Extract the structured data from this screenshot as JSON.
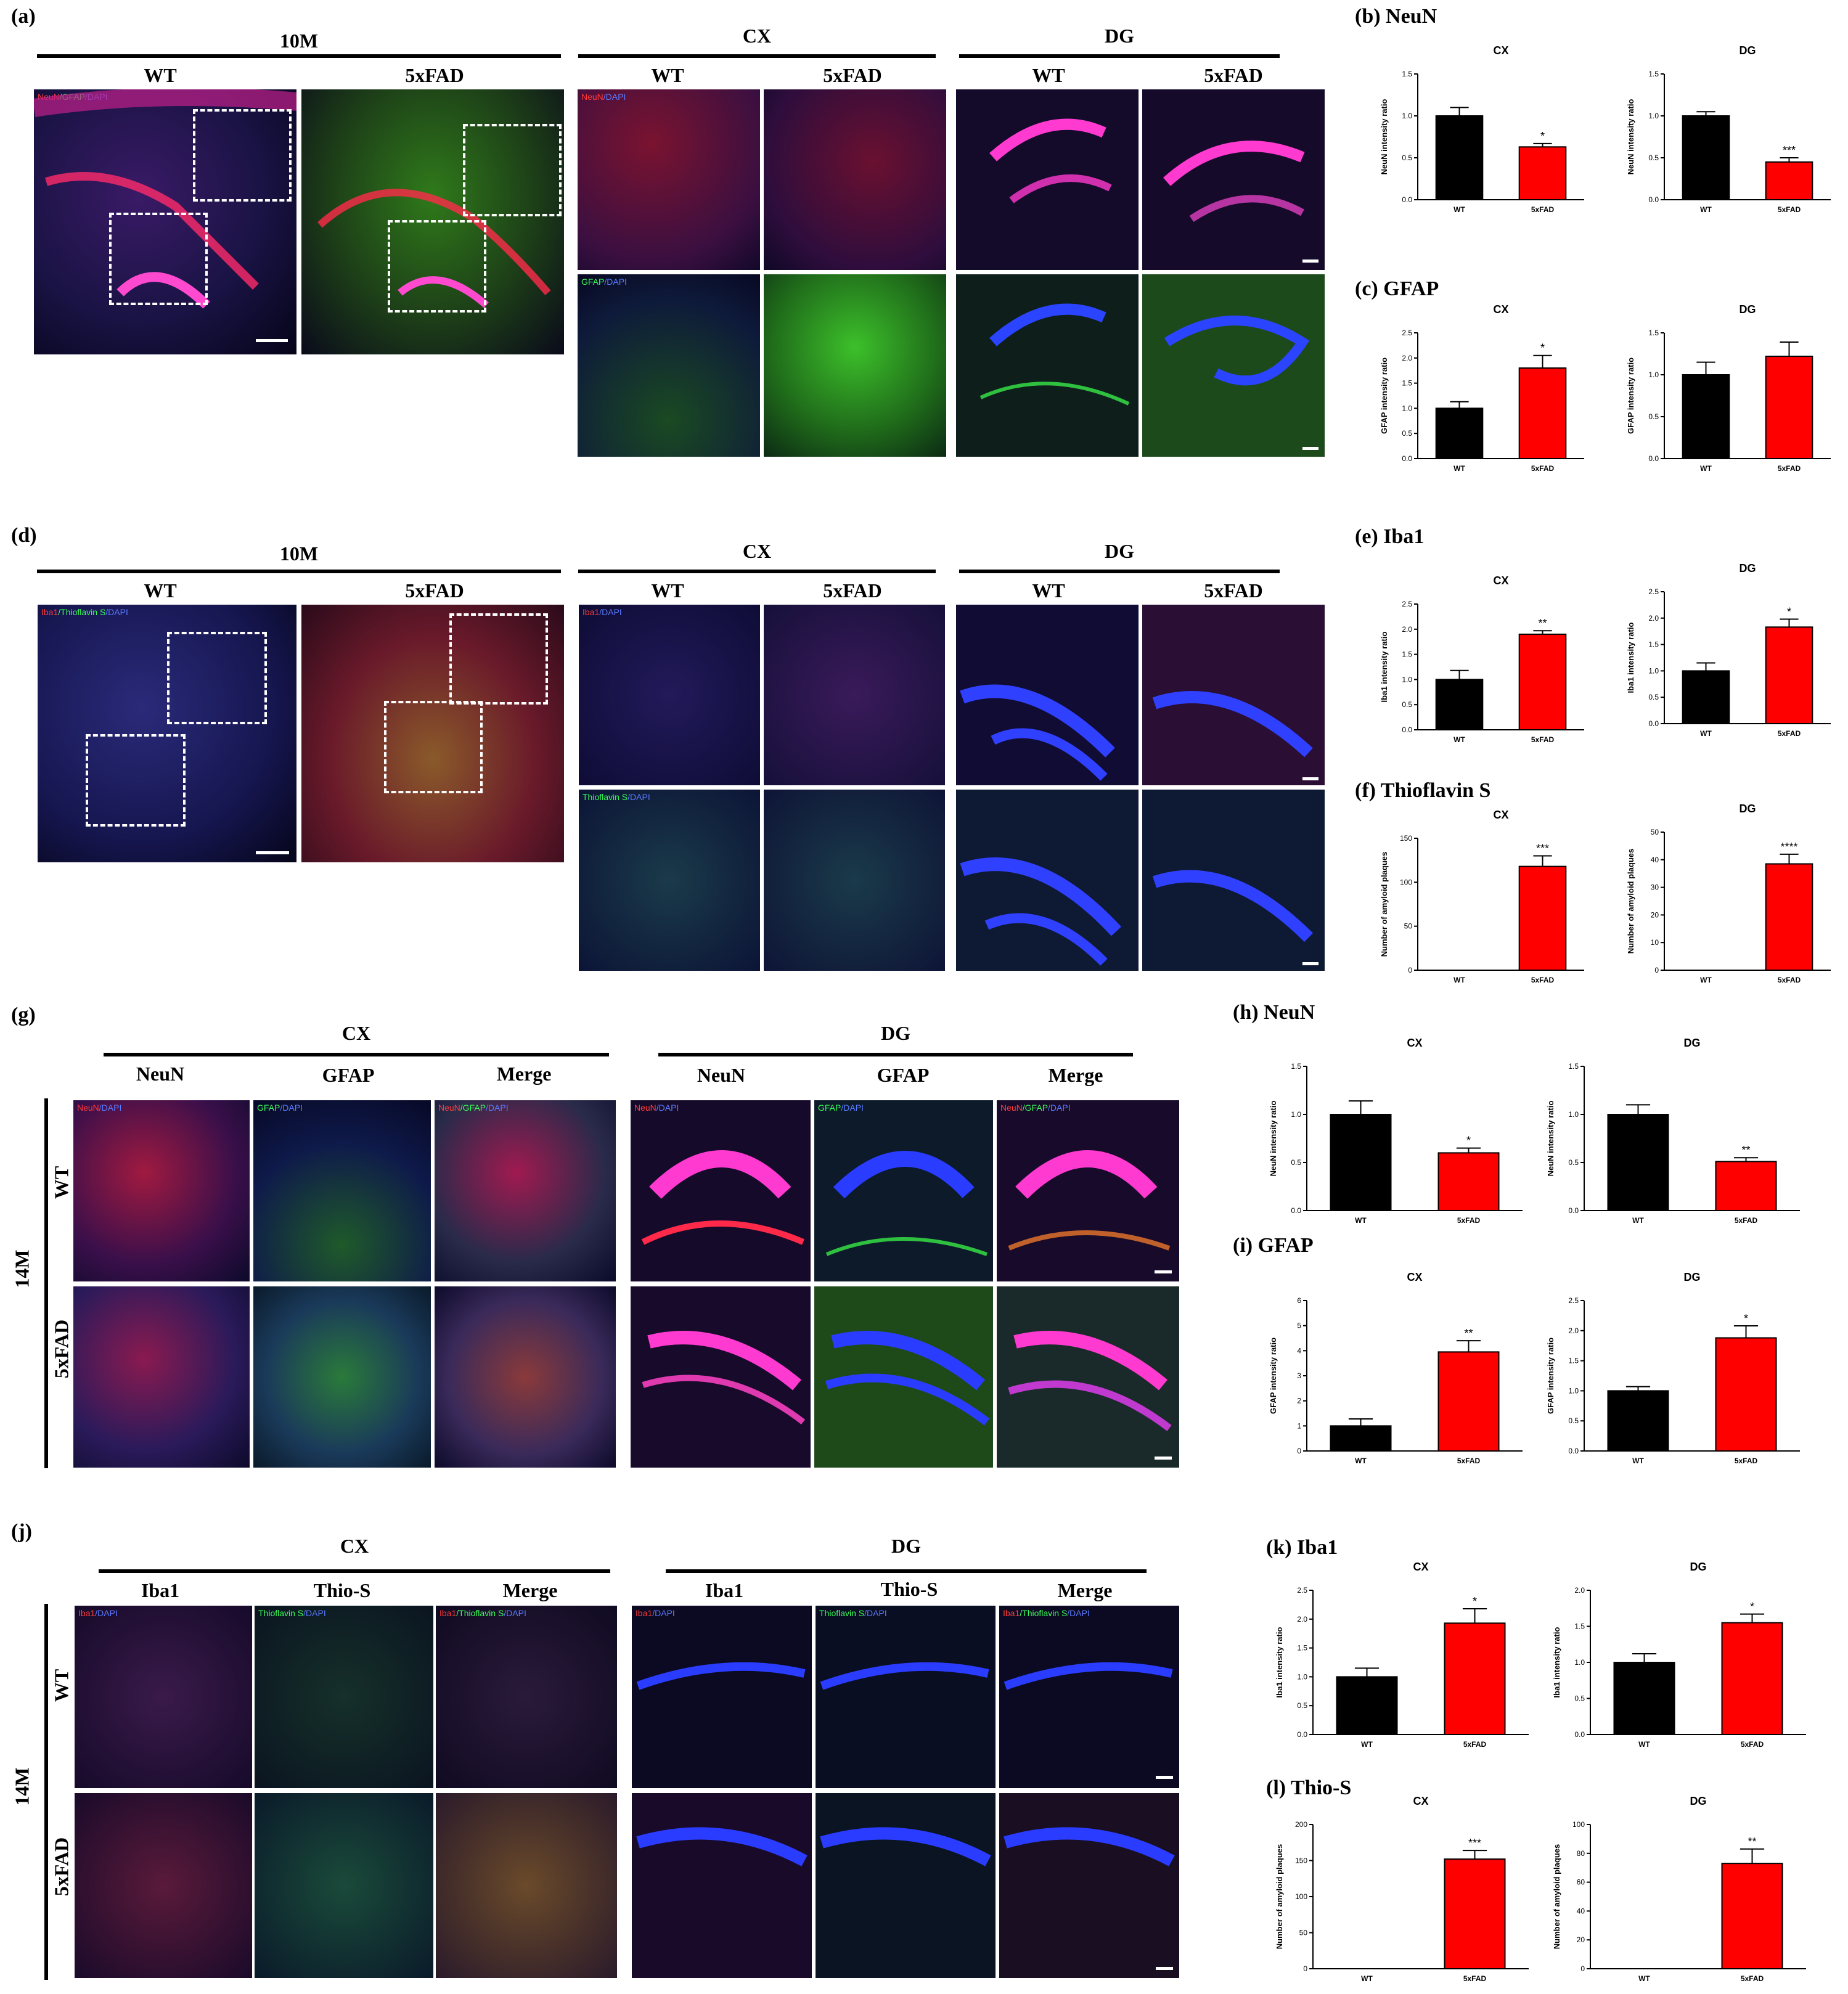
{
  "labels": {
    "a": "(a)",
    "b": "(b) NeuN",
    "c": "(c) GFAP",
    "d": "(d)",
    "e": "(e) Iba1",
    "f": "(f) Thioflavin S",
    "g": "(g)",
    "h": "(h) NeuN",
    "i": "(i) GFAP",
    "j": "(j)",
    "k": "(k) Iba1",
    "l": "(l) Thio-S"
  },
  "headers": {
    "age10": "10M",
    "age14": "14M",
    "wt": "WT",
    "fad": "5xFAD",
    "cx": "CX",
    "dg": "DG",
    "neun": "NeuN",
    "gfap": "GFAP",
    "merge": "Merge",
    "iba1": "Iba1",
    "thios": "Thio-S"
  },
  "captions": {
    "neun_gfap_dapi": [
      "NeuN",
      "/GFAP",
      "/DAPI"
    ],
    "neun_dapi": [
      "NeuN",
      "/DAPI"
    ],
    "gfap_dapi": [
      "GFAP",
      "/DAPI"
    ],
    "iba1_thio_dapi": [
      "Iba1",
      "/Thioflavin S",
      "/DAPI"
    ],
    "iba1_dapi": [
      "Iba1",
      "/DAPI"
    ],
    "thio_dapi": [
      "Thioflavin S",
      "/DAPI"
    ],
    "merge_ng": [
      "NeuN",
      "/GFAP",
      "/DAPI"
    ],
    "merge_it": [
      "Iba1",
      "/Thioflavin S",
      "/DAPI"
    ]
  },
  "colors": {
    "wt_bar": "#000000",
    "fad_bar": "#ff0000"
  },
  "chart_data": [
    {
      "id": "b-cx",
      "type": "bar",
      "title": "CX",
      "ylabel": "NeuN intensity ratio",
      "categories": [
        "WT",
        "5xFAD"
      ],
      "values": [
        1.0,
        0.63
      ],
      "errors": [
        0.1,
        0.04
      ],
      "significance": [
        "",
        "*"
      ],
      "ylim": [
        0,
        1.5
      ],
      "ticks": [
        "0.0",
        "0.5",
        "1.0",
        "1.5"
      ]
    },
    {
      "id": "b-dg",
      "type": "bar",
      "title": "DG",
      "ylabel": "NeuN intensity ratio",
      "categories": [
        "WT",
        "5xFAD"
      ],
      "values": [
        1.0,
        0.45
      ],
      "errors": [
        0.05,
        0.05
      ],
      "significance": [
        "",
        "***"
      ],
      "ylim": [
        0,
        1.5
      ],
      "ticks": [
        "0.0",
        "0.5",
        "1.0",
        "1.5"
      ]
    },
    {
      "id": "c-cx",
      "type": "bar",
      "title": "CX",
      "ylabel": "GFAP intensity ratio",
      "categories": [
        "WT",
        "5xFAD"
      ],
      "values": [
        1.0,
        1.8
      ],
      "errors": [
        0.13,
        0.25
      ],
      "significance": [
        "",
        "*"
      ],
      "ylim": [
        0,
        2.5
      ],
      "ticks": [
        "0.0",
        "0.5",
        "1.0",
        "1.5",
        "2.0",
        "2.5"
      ]
    },
    {
      "id": "c-dg",
      "type": "bar",
      "title": "DG",
      "ylabel": "GFAP intensity ratio",
      "categories": [
        "WT",
        "5xFAD"
      ],
      "values": [
        1.0,
        1.22
      ],
      "errors": [
        0.15,
        0.17
      ],
      "significance": [
        "",
        ""
      ],
      "ylim": [
        0,
        1.5
      ],
      "ticks": [
        "0.0",
        "0.5",
        "1.0",
        "1.5"
      ]
    },
    {
      "id": "e-cx",
      "type": "bar",
      "title": "CX",
      "ylabel": "Iba1 intensity ratio",
      "categories": [
        "WT",
        "5xFAD"
      ],
      "values": [
        1.0,
        1.9
      ],
      "errors": [
        0.18,
        0.07
      ],
      "significance": [
        "",
        "**"
      ],
      "ylim": [
        0,
        2.5
      ],
      "ticks": [
        "0.0",
        "0.5",
        "1.0",
        "1.5",
        "2.0",
        "2.5"
      ]
    },
    {
      "id": "e-dg",
      "type": "bar",
      "title": "DG",
      "ylabel": "Iba1 intensity ratio",
      "categories": [
        "WT",
        "5xFAD"
      ],
      "values": [
        1.0,
        1.83
      ],
      "errors": [
        0.15,
        0.15
      ],
      "significance": [
        "",
        "*"
      ],
      "ylim": [
        0,
        2.5
      ],
      "ticks": [
        "0.0",
        "0.5",
        "1.0",
        "1.5",
        "2.0",
        "2.5"
      ]
    },
    {
      "id": "f-cx",
      "type": "bar",
      "title": "CX",
      "ylabel": "Number of amyloid plaques",
      "categories": [
        "WT",
        "5xFAD"
      ],
      "values": [
        0,
        118
      ],
      "errors": [
        0,
        12
      ],
      "significance": [
        "",
        "***"
      ],
      "ylim": [
        0,
        150
      ],
      "ticks": [
        "0",
        "50",
        "100",
        "150"
      ]
    },
    {
      "id": "f-dg",
      "type": "bar",
      "title": "DG",
      "ylabel": "Number of amyloid plaques",
      "categories": [
        "WT",
        "5xFAD"
      ],
      "values": [
        0,
        38.5
      ],
      "errors": [
        0,
        3.5
      ],
      "significance": [
        "",
        "****"
      ],
      "ylim": [
        0,
        50
      ],
      "ticks": [
        "0",
        "10",
        "20",
        "30",
        "40",
        "50"
      ]
    },
    {
      "id": "h-cx",
      "type": "bar",
      "title": "CX",
      "ylabel": "NeuN intensity ratio",
      "categories": [
        "WT",
        "5xFAD"
      ],
      "values": [
        1.0,
        0.6
      ],
      "errors": [
        0.14,
        0.05
      ],
      "significance": [
        "",
        "*"
      ],
      "ylim": [
        0,
        1.5
      ],
      "ticks": [
        "0.0",
        "0.5",
        "1.0",
        "1.5"
      ]
    },
    {
      "id": "h-dg",
      "type": "bar",
      "title": "DG",
      "ylabel": "NeuN intensity ratio",
      "categories": [
        "WT",
        "5xFAD"
      ],
      "values": [
        1.0,
        0.51
      ],
      "errors": [
        0.1,
        0.04
      ],
      "significance": [
        "",
        "**"
      ],
      "ylim": [
        0,
        1.5
      ],
      "ticks": [
        "0.0",
        "0.5",
        "1.0",
        "1.5"
      ]
    },
    {
      "id": "i-cx",
      "type": "bar",
      "title": "CX",
      "ylabel": "GFAP intensity ratio",
      "categories": [
        "WT",
        "5xFAD"
      ],
      "values": [
        1.0,
        3.95
      ],
      "errors": [
        0.28,
        0.45
      ],
      "significance": [
        "",
        "**"
      ],
      "ylim": [
        0,
        6
      ],
      "ticks": [
        "0",
        "1",
        "2",
        "3",
        "4",
        "5",
        "6"
      ]
    },
    {
      "id": "i-dg",
      "type": "bar",
      "title": "DG",
      "ylabel": "GFAP intensity ratio",
      "categories": [
        "WT",
        "5xFAD"
      ],
      "values": [
        1.0,
        1.88
      ],
      "errors": [
        0.07,
        0.2
      ],
      "significance": [
        "",
        "*"
      ],
      "ylim": [
        0,
        2.5
      ],
      "ticks": [
        "0.0",
        "0.5",
        "1.0",
        "1.5",
        "2.0",
        "2.5"
      ]
    },
    {
      "id": "k-cx",
      "type": "bar",
      "title": "CX",
      "ylabel": "Iba1 intensity ratio",
      "categories": [
        "WT",
        "5xFAD"
      ],
      "values": [
        1.0,
        1.93
      ],
      "errors": [
        0.15,
        0.25
      ],
      "significance": [
        "",
        "*"
      ],
      "ylim": [
        0,
        2.5
      ],
      "ticks": [
        "0.0",
        "0.5",
        "1.0",
        "1.5",
        "2.0",
        "2.5"
      ]
    },
    {
      "id": "k-dg",
      "type": "bar",
      "title": "DG",
      "ylabel": "Iba1 intensity ratio",
      "categories": [
        "WT",
        "5xFAD"
      ],
      "values": [
        1.0,
        1.55
      ],
      "errors": [
        0.12,
        0.12
      ],
      "significance": [
        "",
        "*"
      ],
      "ylim": [
        0,
        2.0
      ],
      "ticks": [
        "0.0",
        "0.5",
        "1.0",
        "1.5",
        "2.0"
      ]
    },
    {
      "id": "l-cx",
      "type": "bar",
      "title": "CX",
      "ylabel": "Number of amyloid plaques",
      "categories": [
        "WT",
        "5xFAD"
      ],
      "values": [
        0,
        152
      ],
      "errors": [
        0,
        12
      ],
      "significance": [
        "",
        "***"
      ],
      "ylim": [
        0,
        200
      ],
      "ticks": [
        "0",
        "50",
        "100",
        "150",
        "200"
      ]
    },
    {
      "id": "l-dg",
      "type": "bar",
      "title": "DG",
      "ylabel": "Number of amyloid plaques",
      "categories": [
        "WT",
        "5xFAD"
      ],
      "values": [
        0,
        73
      ],
      "errors": [
        0,
        10
      ],
      "significance": [
        "",
        "**"
      ],
      "ylim": [
        0,
        100
      ],
      "ticks": [
        "0",
        "20",
        "40",
        "60",
        "80",
        "100"
      ]
    }
  ]
}
